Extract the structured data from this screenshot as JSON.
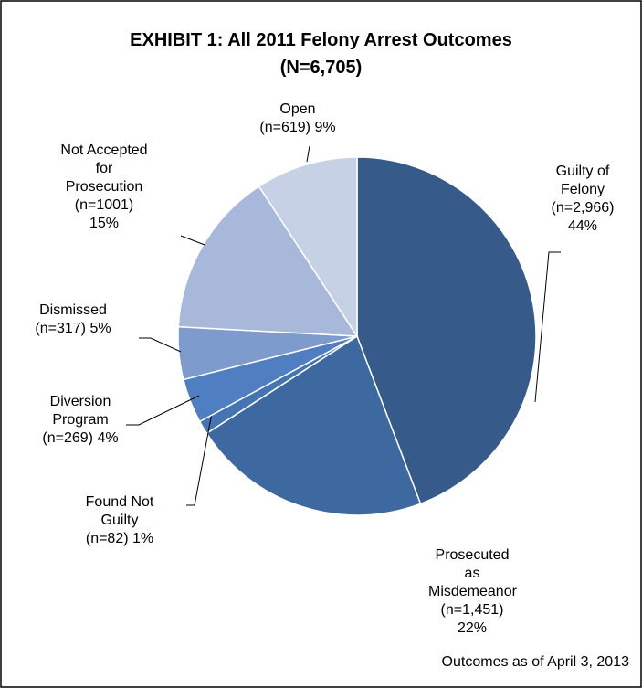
{
  "chart_data": {
    "type": "pie",
    "title": "EXHIBIT 1: All 2011 Felony Arrest Outcomes",
    "subtitle": "(N=6,705)",
    "categories": [
      "Guilty of Felony",
      "Prosecuted as Misdemeanor",
      "Found Not Guilty",
      "Diversion Program",
      "Dismissed",
      "Not Accepted for Prosecution",
      "Open"
    ],
    "values": [
      2966,
      1451,
      82,
      269,
      317,
      1001,
      619
    ],
    "value_labels": [
      "(n=2,966)",
      "(n=1,451)",
      "(n=82)",
      "(n=269)",
      "(n=317)",
      "(n=1001)",
      "(n=619)"
    ],
    "percent_labels": [
      "44%",
      "22%",
      "1%",
      "4%",
      "5%",
      "15%",
      "9%"
    ],
    "colors": [
      "#365a89",
      "#3e68a0",
      "#4574b3",
      "#4f7fc0",
      "#7d9bcc",
      "#a8b8da",
      "#c6d1e5"
    ],
    "note": "Outcomes as of April 3, 2013"
  }
}
